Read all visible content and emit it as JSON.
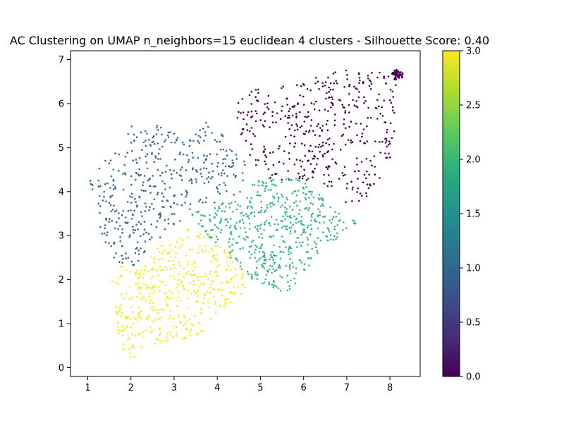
{
  "chart_data": {
    "type": "scatter",
    "title": "AC Clustering on UMAP n_neighbors=15 euclidean 4 clusters - Silhouette Score: 0.40",
    "xlabel": "",
    "ylabel": "",
    "xlim": [
      0.6,
      8.7
    ],
    "ylim": [
      -0.2,
      7.2
    ],
    "xticks": [
      1,
      2,
      3,
      4,
      5,
      6,
      7,
      8
    ],
    "yticks": [
      0,
      1,
      2,
      3,
      4,
      5,
      6,
      7
    ],
    "grid": false,
    "colormap": "viridis",
    "colorbar": {
      "min": 0.0,
      "max": 3.0,
      "ticks": [
        "0.0",
        "0.5",
        "1.0",
        "1.5",
        "2.0",
        "2.5",
        "3.0"
      ]
    },
    "clusters": [
      {
        "label": 0,
        "color": "#440154",
        "approx_count": 430,
        "region": [
          [
            4.3,
            5.6
          ],
          [
            4.6,
            6.3
          ],
          [
            5.6,
            6.4
          ],
          [
            6.3,
            6.6
          ],
          [
            6.9,
            6.8
          ],
          [
            7.8,
            6.7
          ],
          [
            8.3,
            6.8
          ],
          [
            8.1,
            6.2
          ],
          [
            8.1,
            5.0
          ],
          [
            7.8,
            4.3
          ],
          [
            7.5,
            4.0
          ],
          [
            7.4,
            3.7
          ],
          [
            6.9,
            3.7
          ],
          [
            6.8,
            4.0
          ],
          [
            6.2,
            4.2
          ],
          [
            5.6,
            4.2
          ],
          [
            5.2,
            4.3
          ],
          [
            4.8,
            4.7
          ],
          [
            4.6,
            5.2
          ]
        ],
        "dense_spots": [
          [
            8.2,
            6.7
          ],
          [
            8.15,
            6.6
          ],
          [
            8.1,
            6.7
          ],
          [
            8.25,
            6.65
          ]
        ]
      },
      {
        "label": 1,
        "color": "#31688e",
        "approx_count": 420,
        "region": [
          [
            0.95,
            4.2
          ],
          [
            1.3,
            4.6
          ],
          [
            1.7,
            5.0
          ],
          [
            2.0,
            5.5
          ],
          [
            2.5,
            5.55
          ],
          [
            3.0,
            5.45
          ],
          [
            3.3,
            5.1
          ],
          [
            3.7,
            5.6
          ],
          [
            4.1,
            5.3
          ],
          [
            4.4,
            5.0
          ],
          [
            4.7,
            4.6
          ],
          [
            4.65,
            4.0
          ],
          [
            4.3,
            3.8
          ],
          [
            3.8,
            3.5
          ],
          [
            3.3,
            3.3
          ],
          [
            3.0,
            3.2
          ],
          [
            2.6,
            2.9
          ],
          [
            2.3,
            2.6
          ],
          [
            2.1,
            2.3
          ],
          [
            1.7,
            2.2
          ],
          [
            1.45,
            2.6
          ],
          [
            1.3,
            3.1
          ],
          [
            1.1,
            3.7
          ]
        ]
      },
      {
        "label": 2,
        "color": "#35b779",
        "approx_count": 520,
        "region": [
          [
            3.4,
            3.5
          ],
          [
            3.8,
            3.6
          ],
          [
            4.3,
            3.8
          ],
          [
            4.7,
            4.1
          ],
          [
            5.2,
            4.4
          ],
          [
            5.9,
            4.3
          ],
          [
            6.3,
            4.0
          ],
          [
            6.7,
            3.6
          ],
          [
            7.1,
            3.4
          ],
          [
            7.35,
            3.3
          ],
          [
            7.0,
            3.1
          ],
          [
            6.7,
            2.8
          ],
          [
            6.4,
            2.7
          ],
          [
            6.2,
            2.4
          ],
          [
            5.9,
            2.0
          ],
          [
            5.6,
            1.7
          ],
          [
            5.2,
            1.8
          ],
          [
            4.8,
            2.0
          ],
          [
            4.5,
            2.3
          ],
          [
            4.3,
            2.5
          ],
          [
            4.0,
            2.8
          ],
          [
            3.6,
            3.1
          ]
        ]
      },
      {
        "label": 3,
        "color": "#fde725",
        "approx_count": 430,
        "region": [
          [
            1.5,
            2.1
          ],
          [
            1.8,
            2.4
          ],
          [
            2.3,
            2.3
          ],
          [
            2.6,
            2.7
          ],
          [
            3.0,
            3.1
          ],
          [
            3.5,
            3.2
          ],
          [
            3.9,
            2.9
          ],
          [
            4.3,
            2.6
          ],
          [
            4.6,
            2.2
          ],
          [
            4.7,
            1.8
          ],
          [
            4.4,
            1.5
          ],
          [
            4.0,
            1.3
          ],
          [
            3.9,
            1.0
          ],
          [
            3.6,
            0.7
          ],
          [
            3.0,
            0.6
          ],
          [
            2.5,
            0.5
          ],
          [
            2.2,
            0.3
          ],
          [
            2.0,
            0.15
          ],
          [
            1.8,
            0.4
          ],
          [
            1.7,
            0.9
          ],
          [
            1.6,
            1.6
          ]
        ]
      }
    ]
  }
}
